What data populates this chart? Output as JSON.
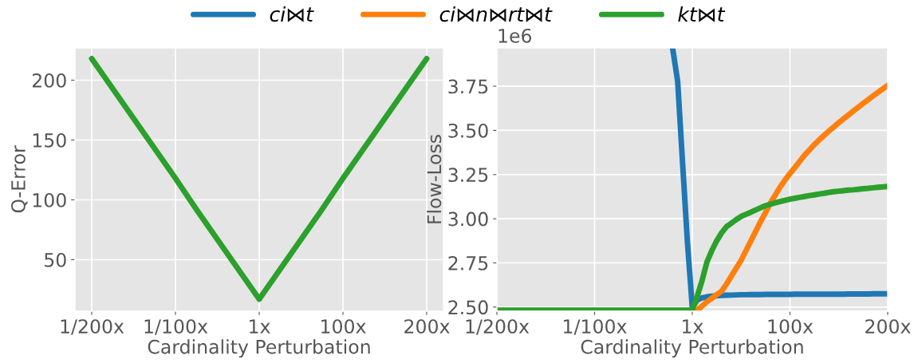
{
  "chart_data": [
    {
      "type": "line",
      "xlabel": "Cardinality Perturbation",
      "ylabel": "Q-Error",
      "ylim": [
        7,
        227
      ],
      "categories": [
        "1/200x",
        null,
        null,
        null,
        "1/100x",
        null,
        null,
        null,
        "1x",
        null,
        null,
        null,
        "100x",
        null,
        null,
        null,
        "200x"
      ],
      "yticks": [
        50,
        100,
        150,
        200
      ],
      "grid": true,
      "series": [
        {
          "color": "#2ca02c",
          "values": [
            218,
            193,
            168,
            143,
            118,
            92,
            67,
            42,
            17,
            42,
            67,
            92,
            118,
            143,
            168,
            193,
            218
          ]
        }
      ]
    },
    {
      "type": "line",
      "xlabel": "Cardinality Perturbation",
      "ylabel": "Flow-Loss",
      "ylim": [
        2.477,
        3.967
      ],
      "categories": [
        "1/200x",
        null,
        null,
        null,
        null,
        null,
        null,
        null,
        null,
        null,
        null,
        null,
        null,
        null,
        null,
        null,
        null,
        null,
        null,
        null,
        "1/100x",
        null,
        null,
        null,
        null,
        null,
        null,
        null,
        null,
        null,
        null,
        null,
        null,
        null,
        null,
        null,
        null,
        null,
        null,
        null,
        "1x",
        null,
        null,
        null,
        null,
        null,
        null,
        null,
        null,
        null,
        null,
        null,
        null,
        null,
        null,
        null,
        null,
        null,
        null,
        null,
        "100x",
        null,
        null,
        null,
        null,
        null,
        null,
        null,
        null,
        null,
        null,
        null,
        null,
        null,
        null,
        null,
        null,
        null,
        null,
        null,
        "200x"
      ],
      "yticks": [
        {
          "value": 2.5,
          "label": "2.50"
        },
        {
          "value": 2.75,
          "label": "2.75"
        },
        {
          "value": 3.0,
          "label": "3.00"
        },
        {
          "value": 3.25,
          "label": "3.25"
        },
        {
          "value": 3.5,
          "label": "3.50"
        },
        {
          "value": 3.75,
          "label": "3.75"
        }
      ],
      "annotations": [
        "1e6"
      ],
      "grid": true,
      "legend": "top",
      "series": [
        {
          "name": "ci⋈t",
          "color": "#1f77b4",
          "values": [
            null,
            null,
            null,
            null,
            null,
            null,
            null,
            null,
            null,
            null,
            null,
            null,
            null,
            null,
            null,
            null,
            null,
            null,
            null,
            null,
            null,
            null,
            null,
            null,
            null,
            null,
            null,
            null,
            null,
            null,
            null,
            null,
            null,
            null,
            null,
            null,
            3.96,
            3.78,
            3.32,
            2.87,
            2.497,
            2.54,
            2.552,
            2.558,
            2.562,
            2.564,
            2.566,
            2.567,
            2.568,
            2.569,
            2.57,
            2.57,
            2.571,
            2.571,
            2.571,
            2.572,
            2.572,
            2.572,
            2.572,
            2.572,
            2.572,
            2.573,
            2.573,
            2.573,
            2.573,
            2.573,
            2.573,
            2.573,
            2.573,
            2.573,
            2.573,
            2.573,
            2.574,
            2.574,
            2.574,
            2.574,
            2.574,
            2.575,
            2.575,
            2.575,
            2.575
          ]
        },
        {
          "name": "ci⋈n⋈rt⋈t",
          "color": "#ff7f0e",
          "values": [
            null,
            null,
            null,
            null,
            null,
            null,
            null,
            null,
            null,
            null,
            null,
            null,
            null,
            null,
            null,
            null,
            null,
            null,
            null,
            null,
            null,
            null,
            null,
            null,
            null,
            null,
            null,
            null,
            null,
            null,
            null,
            null,
            null,
            null,
            null,
            null,
            null,
            null,
            null,
            null,
            null,
            2.483,
            2.505,
            2.53,
            2.55,
            2.57,
            2.59,
            2.63,
            2.675,
            2.72,
            2.765,
            2.82,
            2.875,
            2.93,
            2.985,
            3.035,
            3.09,
            3.135,
            3.18,
            3.22,
            3.256,
            3.29,
            3.325,
            3.36,
            3.39,
            3.42,
            3.447,
            3.472,
            3.497,
            3.52,
            3.544,
            3.566,
            3.588,
            3.61,
            3.632,
            3.653,
            3.674,
            3.695,
            3.715,
            3.735,
            3.755
          ]
        },
        {
          "name": "kt⋈t",
          "color": "#2ca02c",
          "values": [
            2.483,
            2.483,
            2.483,
            2.483,
            2.483,
            2.483,
            2.483,
            2.483,
            2.483,
            2.483,
            2.483,
            2.483,
            2.483,
            2.483,
            2.483,
            2.483,
            2.483,
            2.483,
            2.483,
            2.483,
            2.483,
            2.483,
            2.483,
            2.483,
            2.483,
            2.483,
            2.483,
            2.483,
            2.483,
            2.483,
            2.483,
            2.483,
            2.483,
            2.483,
            2.483,
            2.483,
            2.483,
            2.483,
            2.483,
            2.483,
            2.483,
            2.56,
            2.65,
            2.755,
            2.82,
            2.875,
            2.92,
            2.955,
            2.975,
            2.995,
            3.013,
            3.025,
            3.037,
            3.05,
            3.062,
            3.074,
            3.082,
            3.09,
            3.097,
            3.104,
            3.111,
            3.116,
            3.121,
            3.126,
            3.131,
            3.135,
            3.14,
            3.144,
            3.149,
            3.153,
            3.156,
            3.159,
            3.162,
            3.164,
            3.167,
            3.17,
            3.172,
            3.175,
            3.178,
            3.18,
            3.183
          ]
        }
      ]
    }
  ]
}
